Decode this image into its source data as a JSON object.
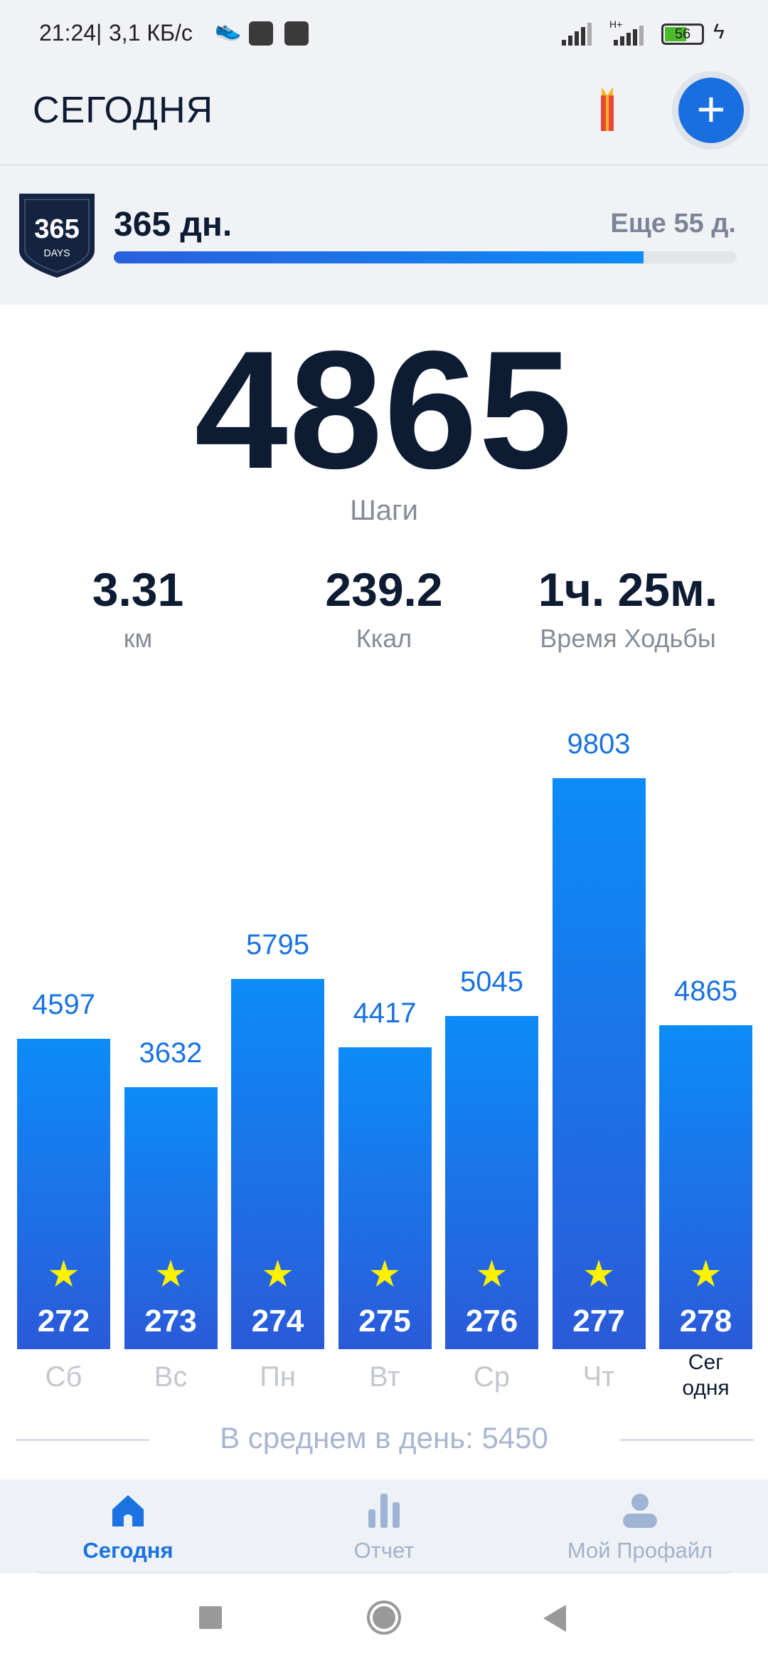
{
  "status_bar": {
    "time": "21:24",
    "speed": "3,1 КБ/с",
    "network": "H+",
    "battery": "56"
  },
  "header": {
    "title": "СЕГОДНЯ",
    "add_label": "+"
  },
  "streak": {
    "badge_number": "365",
    "badge_text": "DAYS",
    "days": "365 дн.",
    "remaining": "Еще 55 д.",
    "progress": 0.85
  },
  "today": {
    "steps": "4865",
    "steps_label": "Шаги"
  },
  "stats": [
    {
      "value": "3.31",
      "label": "км"
    },
    {
      "value": "239.2",
      "label": "Ккал"
    },
    {
      "value": "1ч. 25м.",
      "label": "Время Ходьбы"
    }
  ],
  "chart_data": {
    "type": "bar",
    "categories": [
      "Сб",
      "Вс",
      "Пн",
      "Вт",
      "Ср",
      "Чт",
      "Сегодня"
    ],
    "day_labels": [
      "Сб",
      "Вс",
      "Пн",
      "Вт",
      "Ср",
      "Чт",
      "Сег\nодня"
    ],
    "values": [
      4597,
      3632,
      5795,
      4417,
      5045,
      9803,
      4865
    ],
    "day_numbers": [
      "272",
      "273",
      "274",
      "275",
      "276",
      "277",
      "278"
    ],
    "colors": {
      "bar_top": "#0c8cf8",
      "bar_bottom": "#2b5ad9",
      "star": "#fff200"
    }
  },
  "average": "В среднем в день: 5450",
  "nav": [
    {
      "label": "Сегодня",
      "icon": "home-icon",
      "active": true
    },
    {
      "label": "Отчет",
      "icon": "bar-chart-icon"
    },
    {
      "label": "Мой Профайл",
      "icon": "person-icon"
    }
  ],
  "colors": {
    "accent": "#1a73e0",
    "text": "#0d1b33"
  }
}
